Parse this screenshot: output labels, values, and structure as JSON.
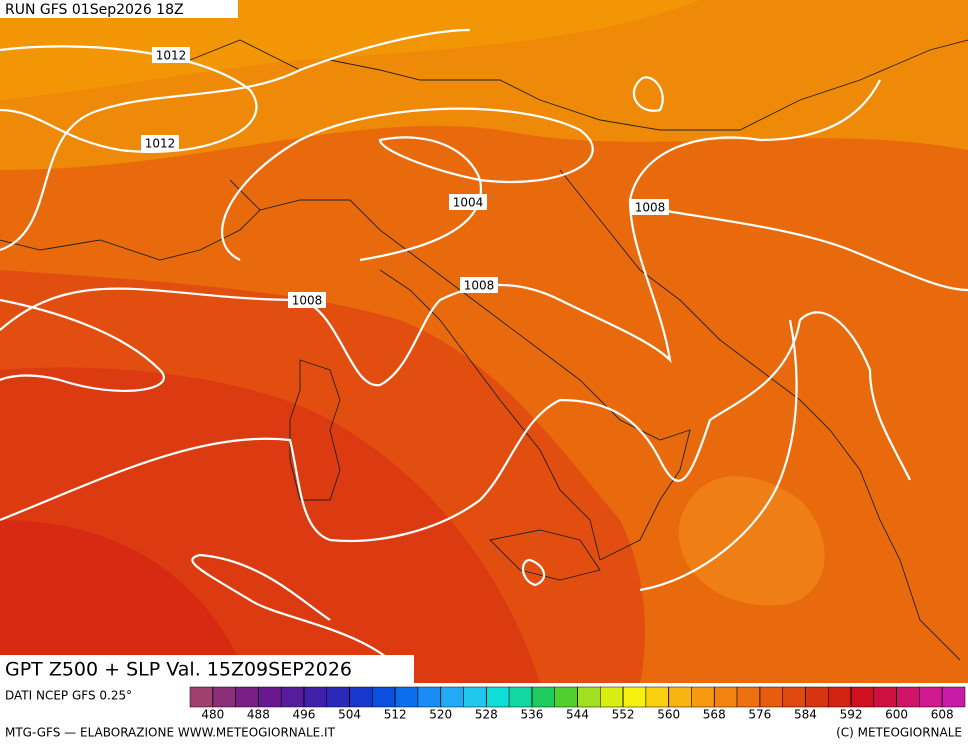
{
  "header": {
    "run": "RUN GFS 01Sep2026 18Z"
  },
  "map": {
    "isobar_labels": [
      "1012",
      "1012",
      "1004",
      "1008",
      "1008",
      "1008"
    ]
  },
  "caption": {
    "field": "GPT Z500 + SLP Val. 15Z09SEP2026",
    "source": "DATI NCEP GFS 0.25°"
  },
  "legend": {
    "lim": [
      476,
      612
    ],
    "ticks": [
      480,
      488,
      496,
      504,
      512,
      520,
      528,
      536,
      544,
      552,
      560,
      568,
      576,
      584,
      592,
      600,
      608
    ],
    "colors": [
      "#a0406e",
      "#8c2f7a",
      "#7a1f86",
      "#6a1890",
      "#561c9c",
      "#4020a8",
      "#2b2ab8",
      "#1838cc",
      "#0a4fe0",
      "#0a6ef0",
      "#1a8cf5",
      "#22aaf5",
      "#20c8f0",
      "#10ddd8",
      "#10d8a0",
      "#20cc60",
      "#50d030",
      "#a0e020",
      "#d8ee10",
      "#f8f010",
      "#f8d010",
      "#f8b410",
      "#f89a10",
      "#f48410",
      "#ee7010",
      "#e85c10",
      "#e04810",
      "#d83410",
      "#d22410",
      "#d01020",
      "#d01040",
      "#d01468",
      "#d01890",
      "#c81ca8"
    ]
  },
  "footer": {
    "left": "MTG-GFS — ELABORAZIONE WWW.METEOGIORNALE.IT",
    "right": "(C) METEOGIORNALE"
  }
}
